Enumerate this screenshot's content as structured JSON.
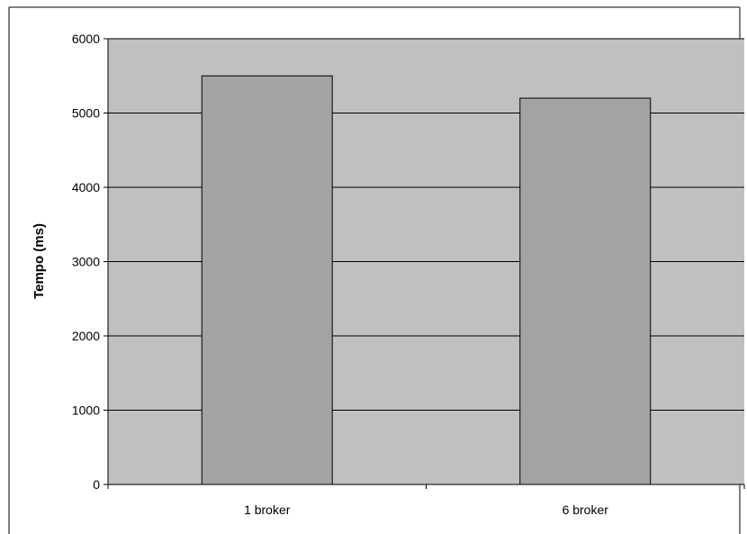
{
  "chart_data": {
    "type": "bar",
    "title": "",
    "xlabel": "",
    "ylabel": "Tempo (ms)",
    "categories": [
      "1 broker",
      "6 broker"
    ],
    "values": [
      5500,
      5200
    ],
    "ylim": [
      0,
      6000
    ],
    "yticks": [
      0,
      1000,
      2000,
      3000,
      4000,
      5000,
      6000
    ],
    "grid": true,
    "legend": "none",
    "colors": {
      "plot_background": "#c0c0c0",
      "bar_fill": "#a3a3a3",
      "bar_stroke": "#000000",
      "gridline": "#000000"
    }
  }
}
